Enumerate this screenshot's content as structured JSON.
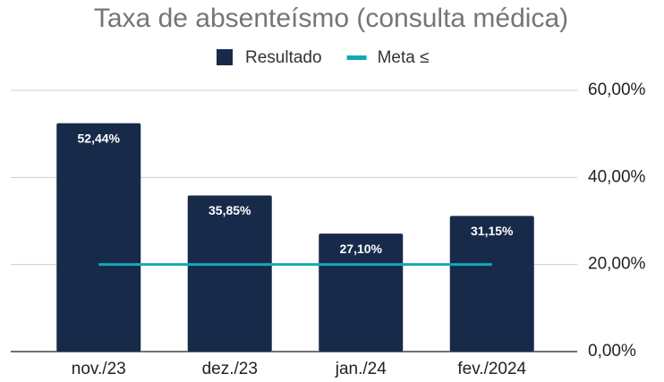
{
  "chart_data": {
    "type": "bar",
    "title": "Taxa de absenteísmo (consulta médica)",
    "categories": [
      "nov./23",
      "dez./23",
      "jan./24",
      "fev./2024"
    ],
    "series": [
      {
        "name": "Resultado",
        "type": "bar",
        "color": "#172a4a",
        "values": [
          52.44,
          35.85,
          27.1,
          31.15
        ],
        "value_labels": [
          "52,44%",
          "35,85%",
          "27,10%",
          "31,15%"
        ]
      },
      {
        "name": "Meta ≤",
        "type": "line",
        "color": "#12a9b5",
        "values": [
          20,
          20,
          20,
          20
        ]
      }
    ],
    "ylim": [
      0,
      60
    ],
    "yticks": [
      {
        "value": 0,
        "label": "0,00%"
      },
      {
        "value": 20,
        "label": "20,00%"
      },
      {
        "value": 40,
        "label": "40,00%"
      },
      {
        "value": 60,
        "label": "60,00%"
      }
    ],
    "grid": true,
    "legend": "top"
  }
}
